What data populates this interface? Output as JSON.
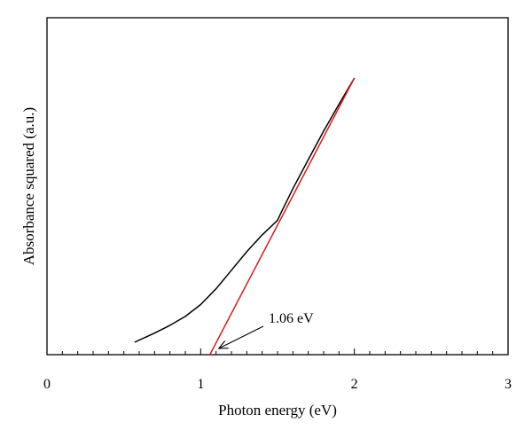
{
  "chart_data": {
    "type": "line",
    "title": "",
    "xlabel": "Photon energy (eV)",
    "ylabel": "Absorbance squared (a.u.)",
    "xlim": [
      0,
      3
    ],
    "ylim": [
      0,
      1
    ],
    "x_major_ticks": [
      0,
      1,
      2,
      3
    ],
    "x_tick_labels": [
      "0",
      "1",
      "2",
      "3"
    ],
    "x_minor_step": 0.1,
    "y_tick_labels": [],
    "grid": false,
    "legend": "none",
    "series": [
      {
        "color": "#000000",
        "x": [
          0.57,
          0.7,
          0.8,
          0.9,
          1.0,
          1.1,
          1.2,
          1.3,
          1.4,
          1.45,
          1.5,
          1.52,
          1.6,
          1.7,
          1.8,
          1.9,
          2.0
        ],
        "y": [
          0.045,
          0.078,
          0.106,
          0.138,
          0.181,
          0.238,
          0.305,
          0.372,
          0.433,
          0.459,
          0.486,
          0.51,
          0.6,
          0.705,
          0.808,
          0.905,
          1.0
        ]
      },
      {
        "color": "#e0191b",
        "x": [
          1.06,
          2.0
        ],
        "y": [
          0.0,
          1.0
        ]
      }
    ],
    "annotations": [
      {
        "text": "1.06 eV",
        "x": 1.06,
        "y": 0.0
      }
    ]
  }
}
